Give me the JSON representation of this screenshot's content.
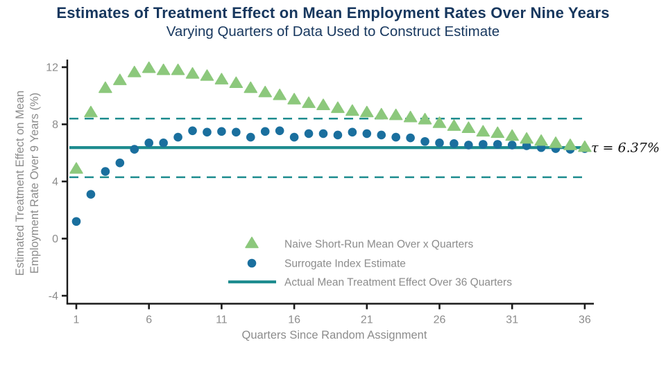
{
  "page": {
    "title": "Estimates of Treatment Effect on Mean Employment Rates Over Nine Years",
    "subtitle": "Varying Quarters of Data Used to Construct Estimate"
  },
  "colors": {
    "title_navy": "#17375e",
    "naive_green": "#8cc87c",
    "surrogate_blue": "#1a6f9e",
    "actual_teal": "#1e8c8f",
    "label_gray": "#8c8c8c",
    "axis_black": "#1a1a1a"
  },
  "chart_data": {
    "type": "scatter",
    "title": "Estimates of Treatment Effect on Mean Employment Rates Over Nine Years",
    "subtitle": "Varying Quarters of Data Used to Construct Estimate",
    "xlabel": "Quarters Since Random Assignment",
    "ylabel": "Estimated Treatment Effect on Mean Employment Rate Over 9 Years (%)",
    "x_ticks": [
      1,
      6,
      11,
      16,
      21,
      26,
      31,
      36
    ],
    "y_ticks": [
      12,
      8,
      4,
      0,
      -4
    ],
    "xlim": [
      0.4,
      36.8
    ],
    "ylim": [
      -4.6,
      12.6
    ],
    "grid": false,
    "legend_position": "inside-bottom-center",
    "x": [
      1,
      2,
      3,
      4,
      5,
      6,
      7,
      8,
      9,
      10,
      11,
      12,
      13,
      14,
      15,
      16,
      17,
      18,
      19,
      20,
      21,
      22,
      23,
      24,
      25,
      26,
      27,
      28,
      29,
      30,
      31,
      32,
      33,
      34,
      35,
      36
    ],
    "series": [
      {
        "name": "Naive Short-Run Mean Over x Quarters",
        "marker": "triangle",
        "color": "#8cc87c",
        "values": [
          4.85,
          8.8,
          10.5,
          11.05,
          11.6,
          11.9,
          11.75,
          11.75,
          11.5,
          11.35,
          11.1,
          10.85,
          10.5,
          10.2,
          10.0,
          9.7,
          9.45,
          9.3,
          9.1,
          8.9,
          8.8,
          8.65,
          8.6,
          8.45,
          8.3,
          8.05,
          7.85,
          7.7,
          7.45,
          7.35,
          7.15,
          6.95,
          6.8,
          6.65,
          6.5,
          6.37
        ]
      },
      {
        "name": "Surrogate Index Estimate",
        "marker": "circle",
        "color": "#1a6f9e",
        "values": [
          1.2,
          3.1,
          4.7,
          5.3,
          6.25,
          6.7,
          6.7,
          7.1,
          7.55,
          7.45,
          7.5,
          7.45,
          7.1,
          7.5,
          7.55,
          7.1,
          7.35,
          7.35,
          7.25,
          7.45,
          7.35,
          7.25,
          7.1,
          7.05,
          6.8,
          6.7,
          6.65,
          6.55,
          6.6,
          6.6,
          6.55,
          6.5,
          6.37,
          6.3,
          6.25,
          6.3
        ]
      }
    ],
    "reference_lines": [
      {
        "name": "Actual Mean Treatment Effect Over 36 Quarters",
        "value": 6.37,
        "style": "solid",
        "color": "#1e8c8f"
      },
      {
        "name": "confidence-upper",
        "value": 8.4,
        "style": "dashed",
        "color": "#1e8c8f"
      },
      {
        "name": "confidence-lower",
        "value": 4.3,
        "style": "dashed",
        "color": "#1e8c8f"
      }
    ],
    "annotation": "τ = 6.37%",
    "legend": {
      "entries": [
        {
          "marker": "triangle",
          "label": "Naive Short-Run Mean Over x Quarters"
        },
        {
          "marker": "circle",
          "label": "Surrogate Index Estimate"
        },
        {
          "marker": "line",
          "label": "Actual Mean Treatment Effect Over 36 Quarters"
        }
      ]
    }
  }
}
